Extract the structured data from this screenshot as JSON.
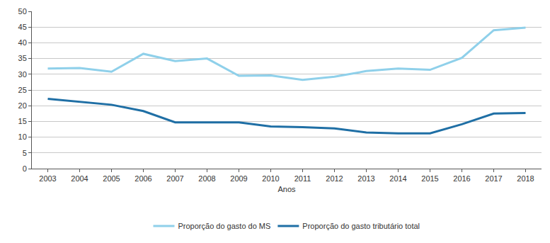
{
  "chart_data": {
    "type": "line",
    "x_label": "Anos",
    "categories": [
      "2003",
      "2004",
      "2005",
      "2006",
      "2007",
      "2008",
      "2009",
      "2010",
      "2011",
      "2012",
      "2013",
      "2014",
      "2015",
      "2016",
      "2017",
      "2018"
    ],
    "series": [
      {
        "name": "Proporção do gasto do MS",
        "color": "#8fd0ea",
        "values": [
          31.8,
          32.0,
          30.8,
          36.5,
          34.2,
          35.0,
          29.5,
          29.6,
          28.2,
          29.2,
          31.0,
          31.8,
          31.4,
          35.2,
          44.0,
          44.8
        ]
      },
      {
        "name": "Proporção do gasto tributário total",
        "color": "#1f6fa5",
        "values": [
          22.2,
          21.2,
          20.3,
          18.3,
          14.7,
          14.7,
          14.7,
          13.4,
          13.2,
          12.8,
          11.5,
          11.2,
          11.2,
          14.1,
          17.5,
          17.7
        ]
      }
    ],
    "ylim": [
      0,
      50
    ],
    "yticks": [
      0,
      5,
      10,
      15,
      20,
      25,
      30,
      35,
      40,
      45,
      50
    ],
    "grid": true,
    "legend": "bottom"
  }
}
